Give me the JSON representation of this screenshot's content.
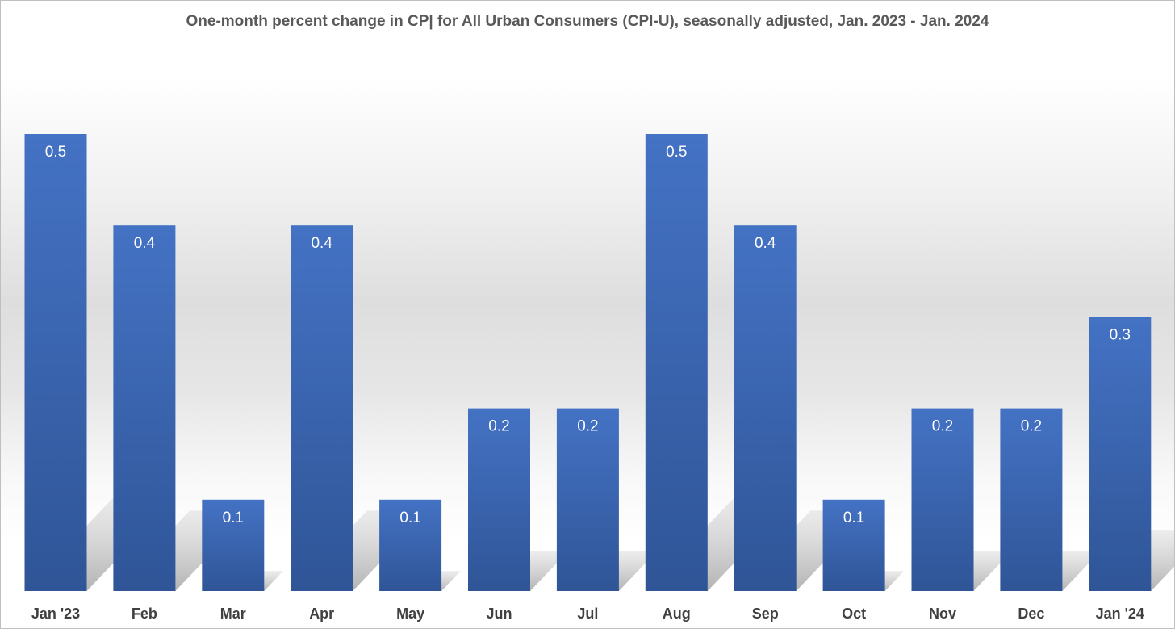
{
  "chart_data": {
    "type": "bar",
    "title": "One-month percent change in CP| for All Urban Consumers (CPI-U), seasonally adjusted, Jan. 2023 - Jan. 2024",
    "categories": [
      "Jan '23",
      "Feb",
      "Mar",
      "Apr",
      "May",
      "Jun",
      "Jul",
      "Aug",
      "Sep",
      "Oct",
      "Nov",
      "Dec",
      "Jan '24"
    ],
    "values": [
      0.5,
      0.4,
      0.1,
      0.4,
      0.1,
      0.2,
      0.2,
      0.5,
      0.4,
      0.1,
      0.2,
      0.2,
      0.3
    ],
    "value_labels": [
      "0.5",
      "0.4",
      "0.1",
      "0.4",
      "0.1",
      "0.2",
      "0.2",
      "0.5",
      "0.4",
      "0.1",
      "0.2",
      "0.2",
      "0.3"
    ],
    "xlabel": "",
    "ylabel": "",
    "ylim": [
      0,
      0.5
    ],
    "grid": false,
    "legend": "none",
    "data_labels": "inside-top",
    "bar_color": "#4472C4",
    "bar_color_dark": "#2F5597"
  }
}
